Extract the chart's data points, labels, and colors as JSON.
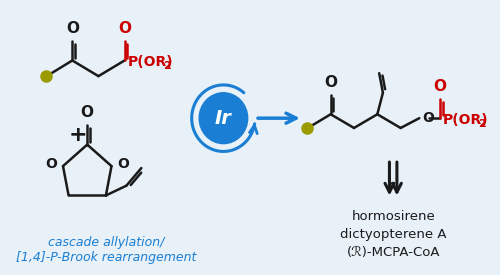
{
  "bg_color": "#e8f0f8",
  "blue": "#1a7fd4",
  "red": "#cc0000",
  "black": "#1a1a1a",
  "olive": "#9b9b00",
  "cascade_text": "cascade allylation/\n[1,4]-P-Brook rearrangement",
  "products_text": "hormosirene\ndictyopterene A\n(R)-MCPA-CoA",
  "ir_text": "Ir"
}
